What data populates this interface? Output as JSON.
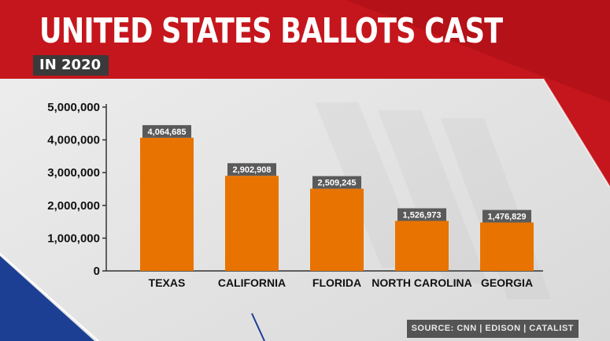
{
  "header": {
    "title": "UNITED STATES BALLOTS CAST",
    "subtitle": "IN 2020"
  },
  "source": "SOURCE: CNN | EDISON | CATALIST",
  "colors": {
    "bar": "#e87300",
    "label_box": "#5a5a5a",
    "banner_red": "#c4161c",
    "banner_blue": "#1c3f94",
    "background": "#e6e6e6"
  },
  "chart_data": {
    "type": "bar",
    "categories": [
      "TEXAS",
      "CALIFORNIA",
      "FLORIDA",
      "NORTH CAROLINA",
      "GEORGIA"
    ],
    "values": [
      4064685,
      2902908,
      2509245,
      1526973,
      1476829
    ],
    "data_labels": [
      "4,064,685",
      "2,902,908",
      "2,509,245",
      "1,526,973",
      "1,476,829"
    ],
    "title": "UNITED STATES BALLOTS CAST",
    "subtitle": "IN 2020",
    "xlabel": "",
    "ylabel": "",
    "ylim": [
      0,
      5000000
    ],
    "yticks": [
      0,
      1000000,
      2000000,
      3000000,
      4000000,
      5000000
    ],
    "ytick_labels": [
      "0",
      "1,000,000",
      "2,000,000",
      "3,000,000",
      "4,000,000",
      "5,000,000"
    ],
    "grid": false,
    "legend": "none"
  }
}
